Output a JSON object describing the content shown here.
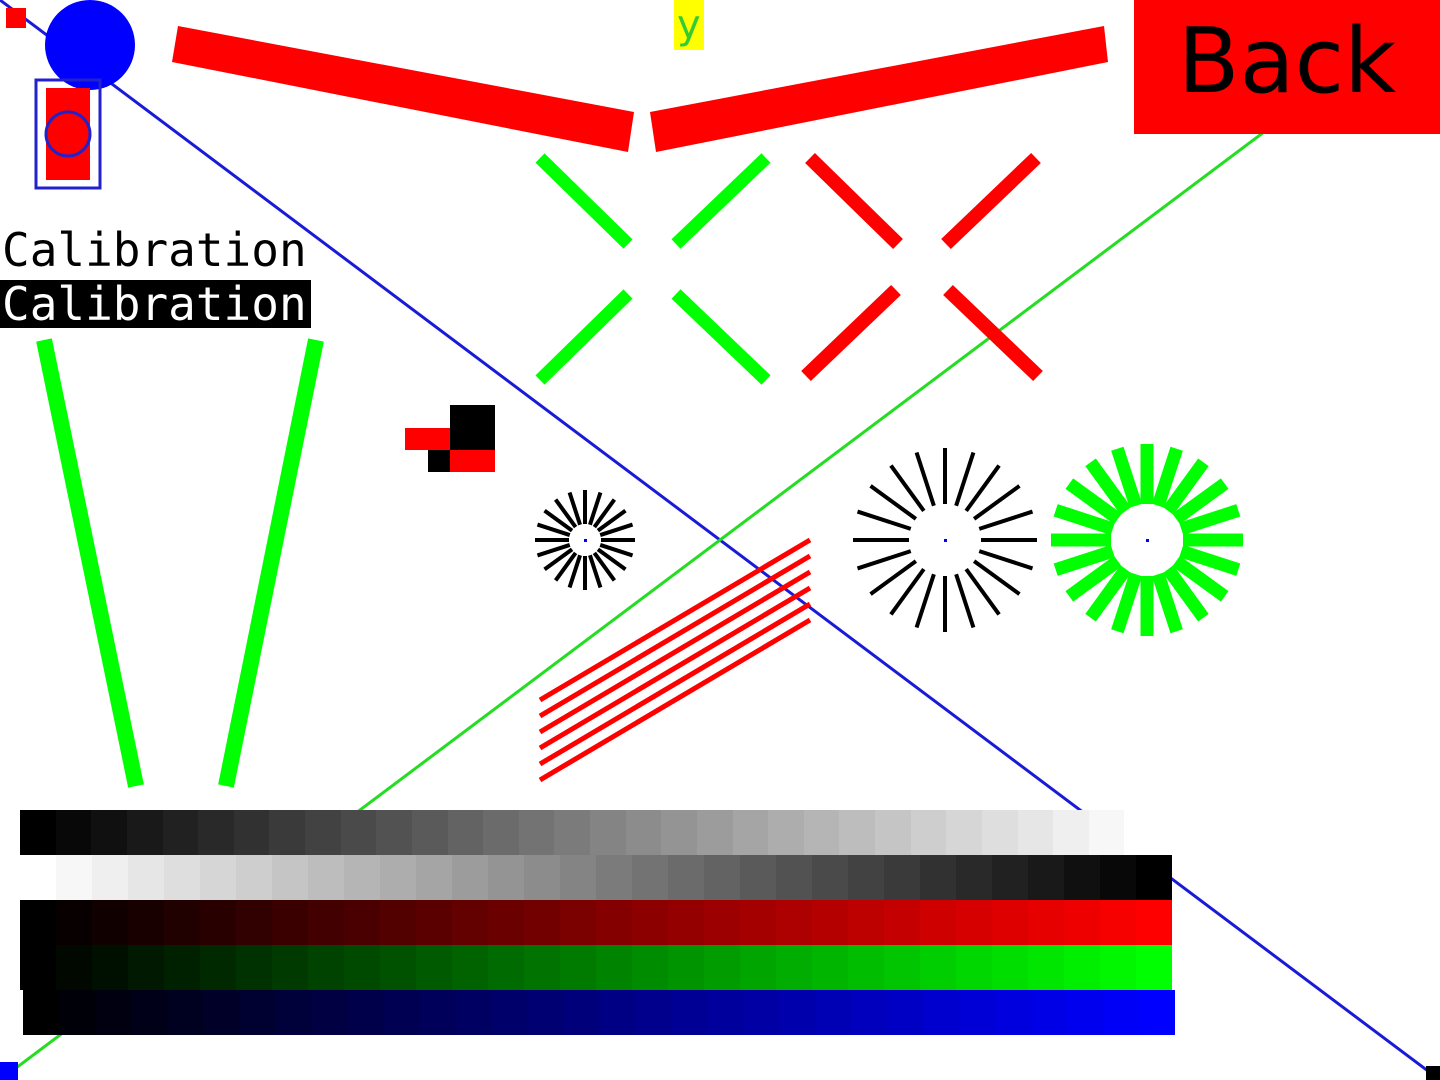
{
  "back_button": {
    "label": "Back",
    "background": "#ff0000",
    "text_color": "#000000"
  },
  "calibration": {
    "normal_label": "Calibration",
    "inverted_label": "Calibration"
  },
  "axis_marker": {
    "label": "y",
    "background": "#ffff00",
    "text_color": "#33cc33"
  },
  "colors": {
    "red": "#ff0000",
    "green": "#00ff00",
    "blue": "#0000ff",
    "dark_blue": "#1a1ad8",
    "black": "#000000",
    "white": "#ffffff"
  },
  "gradients": [
    {
      "name": "gray-ascending",
      "from": "#000000",
      "to": "#ffffff"
    },
    {
      "name": "gray-descending",
      "from": "#ffffff",
      "to": "#000000"
    },
    {
      "name": "red-ramp",
      "from": "#000000",
      "to": "#ff0000"
    },
    {
      "name": "green-ramp",
      "from": "#000000",
      "to": "#00ff00"
    },
    {
      "name": "blue-ramp",
      "from": "#000000",
      "to": "#0000ff"
    }
  ]
}
